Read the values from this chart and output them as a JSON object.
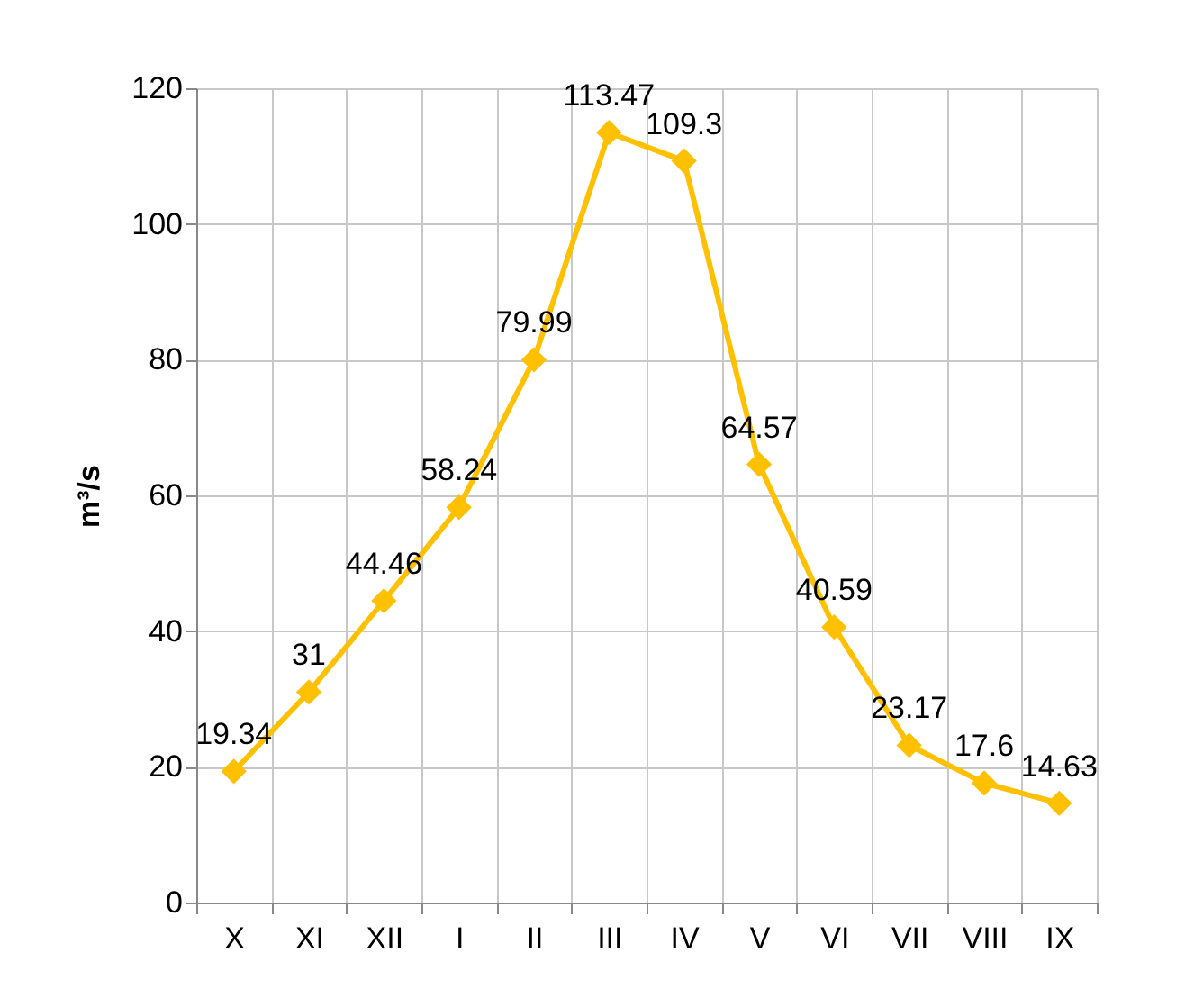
{
  "chart_data": {
    "type": "line",
    "ylabel": "m³/s",
    "categories": [
      "X",
      "XI",
      "XII",
      "I",
      "II",
      "III",
      "IV",
      "V",
      "VI",
      "VII",
      "VIII",
      "IX"
    ],
    "series": [
      {
        "color": "#ffc000",
        "values": [
          19.34,
          31,
          44.46,
          58.24,
          79.99,
          113.47,
          109.3,
          64.57,
          40.59,
          23.17,
          17.6,
          14.63
        ]
      }
    ],
    "ylim": [
      0,
      120
    ],
    "yticks": [
      0,
      20,
      40,
      60,
      80,
      100,
      120
    ],
    "grid": true,
    "marker": "diamond",
    "line_style": "solid",
    "data_labels": true,
    "legend": false
  }
}
